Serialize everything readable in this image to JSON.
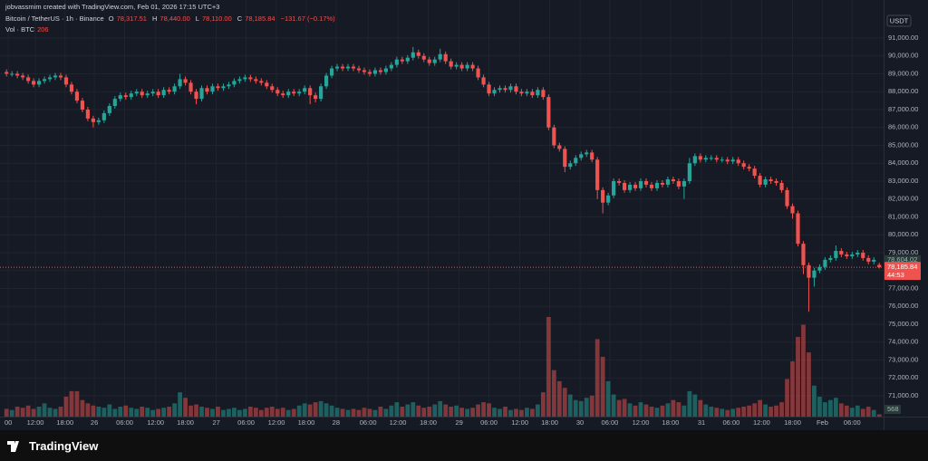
{
  "header": {
    "credit": "jobvassmim created with TradingView.com, Feb 01, 2026 17:15 UTC+3",
    "symbol": "Bitcoin / TetherUS · 1h · Binance",
    "ohlc": [
      {
        "key": "O",
        "value": "78,317.51"
      },
      {
        "key": "H",
        "value": "78,440.00"
      },
      {
        "key": "L",
        "value": "78,110.00"
      },
      {
        "key": "C",
        "value": "78,185.84"
      }
    ],
    "change": "−131.67 (−0.17%)",
    "volume_label": "Vol · BTC",
    "volume_value": "206",
    "brand": "TradingView"
  },
  "chart_data": {
    "type": "candlestick",
    "currency": "USDT",
    "up_color": "#26a69a",
    "down_color": "#ef5350",
    "grid": true,
    "open": [
      89100,
      89000,
      89000,
      88900,
      88800,
      88600,
      88400,
      88600,
      88700,
      88800,
      88900,
      88800,
      88400,
      88000,
      87500,
      87000,
      86500,
      86300,
      86400,
      86800,
      87200,
      87600,
      87800,
      87700,
      87900,
      88000,
      87800,
      87900,
      88000,
      87800,
      88100,
      88000,
      88300,
      88700,
      88500,
      88000,
      87600,
      88200,
      88000,
      88300,
      88200,
      88300,
      88400,
      88600,
      88700,
      88800,
      88700,
      88600,
      88500,
      88300,
      88100,
      87900,
      87800,
      88000,
      87900,
      88000,
      88200,
      87800,
      87600,
      88300,
      88900,
      89300,
      89400,
      89300,
      89400,
      89300,
      89200,
      89100,
      89000,
      89200,
      89100,
      89300,
      89500,
      89800,
      89700,
      89900,
      90200,
      90000,
      89800,
      89600,
      89800,
      90100,
      89700,
      89400,
      89500,
      89300,
      89500,
      89300,
      88800,
      88400,
      87900,
      88100,
      88200,
      88100,
      88300,
      88000,
      87900,
      88000,
      87800,
      88100,
      87700,
      86000,
      85000,
      84800,
      83800,
      84000,
      84300,
      84500,
      84600,
      84200,
      82500,
      81800,
      82200,
      83000,
      82900,
      82500,
      82800,
      82600,
      83000,
      82800,
      82600,
      82900,
      82800,
      83100,
      83000,
      82700,
      83000,
      84000,
      84400,
      84200,
      84300,
      84300,
      84200,
      84200,
      84100,
      84200,
      84000,
      83800,
      83700,
      83300,
      82800,
      83100,
      83000,
      82900,
      82500,
      81600,
      81200,
      79500,
      78300,
      77600,
      78000,
      78200,
      78600,
      78700,
      79100,
      78900,
      78800,
      78900,
      79000,
      78700,
      78500,
      78317.51
    ],
    "high": [
      89250,
      89150,
      89150,
      89050,
      88950,
      88750,
      88750,
      88850,
      88950,
      89050,
      89050,
      88950,
      88550,
      88150,
      87650,
      87150,
      86650,
      86550,
      86950,
      87350,
      87750,
      87950,
      87950,
      88050,
      88150,
      88150,
      88050,
      88150,
      88150,
      88250,
      88250,
      88450,
      89000,
      88850,
      88650,
      88150,
      88350,
      88350,
      88450,
      88450,
      88450,
      88550,
      88750,
      88850,
      88950,
      88950,
      88850,
      88750,
      88650,
      88450,
      88250,
      88050,
      88150,
      88150,
      88150,
      88350,
      88350,
      87950,
      88450,
      89050,
      89450,
      89550,
      89550,
      89550,
      89550,
      89450,
      89350,
      89250,
      89350,
      89350,
      89450,
      89650,
      89950,
      89950,
      90050,
      90500,
      90350,
      90150,
      89950,
      89950,
      90400,
      90250,
      89850,
      89650,
      89650,
      89650,
      89650,
      89450,
      88950,
      88550,
      88250,
      88350,
      88350,
      88450,
      88450,
      88150,
      88150,
      88150,
      88250,
      88250,
      87850,
      86150,
      85150,
      84950,
      84150,
      84450,
      84650,
      84750,
      84750,
      84350,
      82650,
      82350,
      83150,
      83150,
      83050,
      82950,
      82950,
      83150,
      83150,
      82950,
      83050,
      83050,
      83250,
      83250,
      83150,
      83150,
      84300,
      84550,
      84550,
      84450,
      84450,
      84450,
      84350,
      84350,
      84350,
      84350,
      84150,
      83950,
      83850,
      83450,
      83250,
      83250,
      83150,
      83050,
      82650,
      81750,
      81350,
      79650,
      78450,
      78150,
      78350,
      78750,
      78850,
      79400,
      79250,
      79050,
      79050,
      79150,
      79150,
      78850,
      78750,
      78440
    ],
    "low": [
      88850,
      88850,
      88750,
      88650,
      88450,
      88250,
      88250,
      88450,
      88550,
      88650,
      88650,
      88250,
      87850,
      87350,
      86850,
      86350,
      86000,
      86150,
      86250,
      86650,
      87050,
      87450,
      87550,
      87550,
      87750,
      87650,
      87650,
      87750,
      87650,
      87650,
      87850,
      87850,
      88150,
      88350,
      87850,
      87300,
      87450,
      87850,
      87850,
      88050,
      88050,
      88150,
      88250,
      88450,
      88550,
      88550,
      88450,
      88350,
      88150,
      87950,
      87750,
      87650,
      87650,
      87750,
      87750,
      87850,
      87300,
      87400,
      87450,
      88150,
      88750,
      89150,
      89150,
      89150,
      89150,
      89050,
      88950,
      88850,
      88850,
      88950,
      88950,
      89150,
      89350,
      89550,
      89550,
      89750,
      89850,
      89650,
      89450,
      89450,
      89650,
      89550,
      89250,
      89250,
      89150,
      89150,
      89150,
      88650,
      88250,
      87750,
      87750,
      87950,
      87950,
      87950,
      87850,
      87750,
      87750,
      87650,
      87650,
      87550,
      85850,
      84850,
      84650,
      83500,
      83650,
      83850,
      84150,
      84350,
      84050,
      82000,
      81200,
      81650,
      82050,
      82750,
      82350,
      82350,
      82450,
      82450,
      82650,
      82450,
      82450,
      82650,
      82650,
      82850,
      82550,
      82000,
      82850,
      83850,
      84050,
      84050,
      84150,
      84050,
      84050,
      83950,
      83950,
      83850,
      83650,
      83550,
      83150,
      82650,
      82650,
      82850,
      82750,
      82350,
      81450,
      80900,
      79350,
      77800,
      75700,
      77100,
      77850,
      78050,
      78450,
      78550,
      78750,
      78650,
      78650,
      78750,
      78550,
      78350,
      78350,
      78110
    ],
    "close": [
      89000,
      89000,
      88900,
      88800,
      88600,
      88400,
      88600,
      88700,
      88800,
      88900,
      88800,
      88400,
      88000,
      87500,
      87000,
      86500,
      86300,
      86400,
      86800,
      87200,
      87600,
      87800,
      87700,
      87900,
      88000,
      87800,
      87900,
      88000,
      87800,
      88100,
      88000,
      88300,
      88700,
      88500,
      88000,
      87600,
      88200,
      88000,
      88300,
      88200,
      88300,
      88400,
      88600,
      88700,
      88800,
      88700,
      88600,
      88500,
      88300,
      88100,
      87900,
      87800,
      88000,
      87900,
      88000,
      88200,
      87800,
      87600,
      88300,
      88900,
      89300,
      89400,
      89300,
      89400,
      89300,
      89200,
      89100,
      89000,
      89200,
      89100,
      89300,
      89500,
      89800,
      89700,
      89900,
      90200,
      90000,
      89800,
      89600,
      89800,
      90100,
      89700,
      89400,
      89500,
      89300,
      89500,
      89300,
      88800,
      88400,
      87900,
      88100,
      88200,
      88100,
      88300,
      88000,
      87900,
      88000,
      87800,
      88100,
      87700,
      86000,
      85000,
      84800,
      83800,
      84000,
      84300,
      84500,
      84600,
      84200,
      82500,
      81800,
      82200,
      83000,
      82900,
      82500,
      82800,
      82600,
      83000,
      82800,
      82600,
      82900,
      82800,
      83100,
      83000,
      82700,
      83000,
      84000,
      84400,
      84200,
      84300,
      84300,
      84200,
      84200,
      84100,
      84200,
      84000,
      83800,
      83700,
      83300,
      82800,
      83100,
      83000,
      82900,
      82500,
      81600,
      81200,
      79500,
      78300,
      77600,
      78000,
      78200,
      78600,
      78700,
      79100,
      78900,
      78800,
      78900,
      79000,
      78700,
      78500,
      78600,
      78185.84
    ],
    "volume": [
      700,
      600,
      900,
      800,
      1000,
      700,
      900,
      1200,
      800,
      700,
      900,
      1800,
      2300,
      2300,
      1500,
      1200,
      1000,
      900,
      800,
      1100,
      700,
      900,
      1000,
      800,
      700,
      900,
      800,
      600,
      700,
      800,
      900,
      1200,
      2200,
      1700,
      1000,
      1100,
      900,
      800,
      700,
      900,
      600,
      700,
      800,
      600,
      700,
      900,
      800,
      600,
      800,
      900,
      700,
      800,
      600,
      700,
      1000,
      1200,
      1100,
      1300,
      1400,
      1200,
      1000,
      800,
      700,
      600,
      700,
      600,
      800,
      700,
      600,
      900,
      700,
      1000,
      1300,
      900,
      1100,
      1300,
      1000,
      800,
      900,
      1100,
      1400,
      1100,
      900,
      1000,
      800,
      700,
      800,
      1100,
      1300,
      1200,
      800,
      700,
      900,
      600,
      700,
      600,
      800,
      700,
      1100,
      2200,
      9000,
      4200,
      3200,
      2600,
      2000,
      1500,
      1400,
      1700,
      1900,
      7000,
      5400,
      3200,
      2000,
      1500,
      1600,
      1200,
      1000,
      1300,
      1100,
      900,
      800,
      1000,
      1200,
      1500,
      1300,
      1000,
      2300,
      2000,
      1500,
      1100,
      900,
      800,
      700,
      600,
      700,
      800,
      900,
      1000,
      1200,
      1500,
      1100,
      900,
      1000,
      1300,
      3400,
      5000,
      7200,
      8300,
      5800,
      2800,
      1800,
      1300,
      1500,
      1700,
      1200,
      1000,
      800,
      1000,
      700,
      900,
      600,
      206
    ],
    "volume_marker": 568,
    "xlim": [
      -1.2,
      161.8
    ],
    "xticks": [
      {
        "value": 0.33,
        "label": "00"
      },
      {
        "value": 5.33,
        "label": "12:00"
      },
      {
        "value": 10.8,
        "label": "18:00"
      },
      {
        "value": 16.2,
        "label": "26"
      },
      {
        "value": 21.8,
        "label": "06:00"
      },
      {
        "value": 27.5,
        "label": "12:00"
      },
      {
        "value": 33,
        "label": "18:00"
      },
      {
        "value": 38.7,
        "label": "27"
      },
      {
        "value": 44.2,
        "label": "06:00"
      },
      {
        "value": 49.8,
        "label": "12:00"
      },
      {
        "value": 55.3,
        "label": "18:00"
      },
      {
        "value": 60.8,
        "label": "28"
      },
      {
        "value": 66.7,
        "label": "06:00"
      },
      {
        "value": 72.2,
        "label": "12:00"
      },
      {
        "value": 77.8,
        "label": "18:00"
      },
      {
        "value": 83.5,
        "label": "29"
      },
      {
        "value": 89,
        "label": "06:00"
      },
      {
        "value": 94.7,
        "label": "12:00"
      },
      {
        "value": 100.2,
        "label": "18:00"
      },
      {
        "value": 105.8,
        "label": "30"
      },
      {
        "value": 111.3,
        "label": "06:00"
      },
      {
        "value": 117,
        "label": "12:00"
      },
      {
        "value": 122.5,
        "label": "18:00"
      },
      {
        "value": 128.2,
        "label": "31"
      },
      {
        "value": 133.7,
        "label": "06:00"
      },
      {
        "value": 139.3,
        "label": "12:00"
      },
      {
        "value": 145,
        "label": "18:00"
      },
      {
        "value": 150.5,
        "label": "Feb"
      },
      {
        "value": 156,
        "label": "06:00"
      }
    ],
    "ylim": [
      69835,
      93125
    ],
    "yticks": [
      {
        "value": 71000,
        "label": "71,000.00"
      },
      {
        "value": 72000,
        "label": "72,000.00"
      },
      {
        "value": 73000,
        "label": "73,000.00"
      },
      {
        "value": 74000,
        "label": "74,000.00"
      },
      {
        "value": 75000,
        "label": "75,000.00"
      },
      {
        "value": 76000,
        "label": "76,000.00"
      },
      {
        "value": 77000,
        "label": "77,000.00"
      },
      {
        "value": 78000,
        "label": "78,000.00"
      },
      {
        "value": 79000,
        "label": "79,000.00"
      },
      {
        "value": 80000,
        "label": "80,000.00"
      },
      {
        "value": 81000,
        "label": "81,000.00"
      },
      {
        "value": 82000,
        "label": "82,000.00"
      },
      {
        "value": 83000,
        "label": "83,000.00"
      },
      {
        "value": 84000,
        "label": "84,000.00"
      },
      {
        "value": 85000,
        "label": "85,000.00"
      },
      {
        "value": 86000,
        "label": "86,000.00"
      },
      {
        "value": 87000,
        "label": "87,000.00"
      },
      {
        "value": 88000,
        "label": "88,000.00"
      },
      {
        "value": 89000,
        "label": "89,000.00"
      },
      {
        "value": 90000,
        "label": "90,000.00"
      },
      {
        "value": 91000,
        "label": "91,000.00"
      }
    ],
    "reference_price": {
      "value": 78604.02,
      "label": "78,604.02"
    },
    "last_price": {
      "value": 78185.84,
      "label": "78,185.84",
      "countdown": "44:53"
    }
  }
}
